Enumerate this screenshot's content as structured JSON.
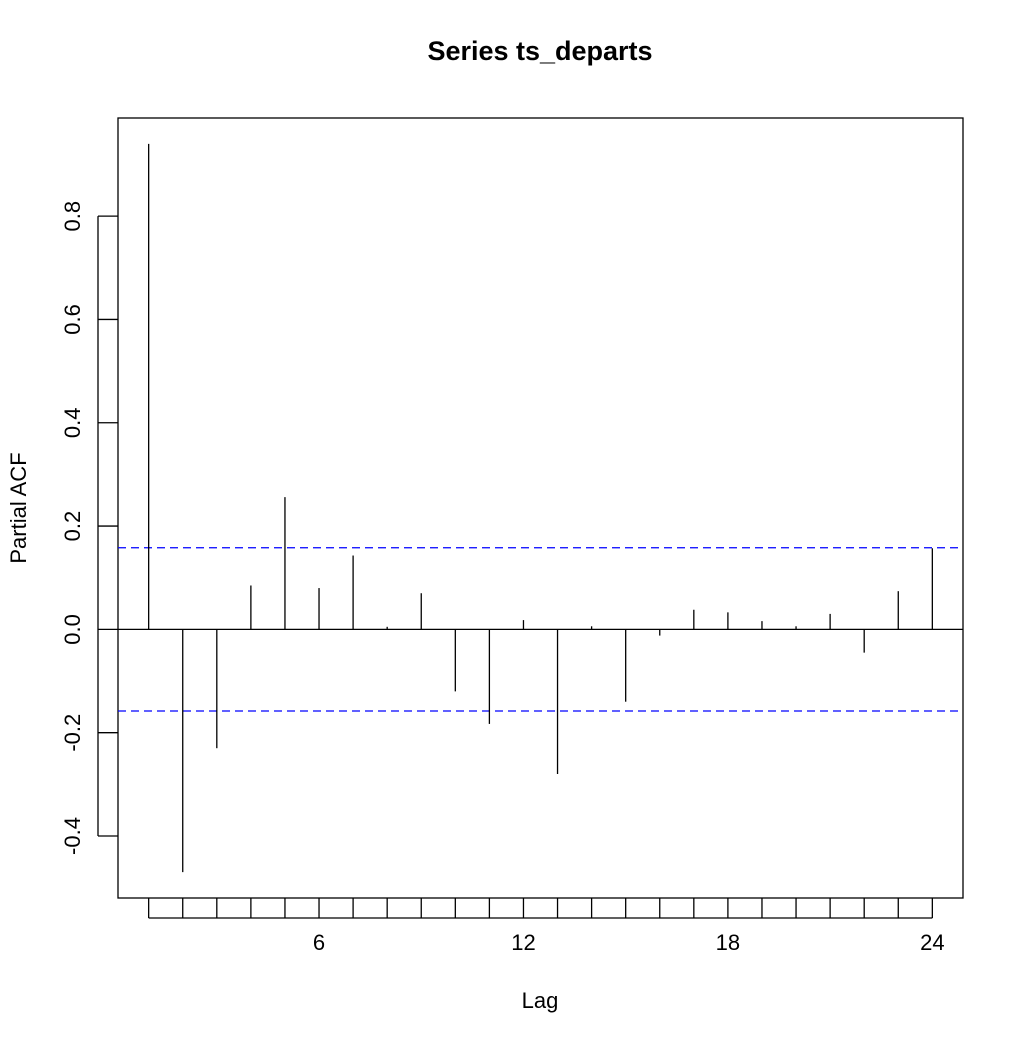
{
  "chart_data": {
    "type": "bar",
    "title": "Series  ts_departs",
    "xlabel": "Lag",
    "ylabel": "Partial ACF",
    "xlim": [
      0.1,
      24.9
    ],
    "ylim": [
      -0.52,
      0.99
    ],
    "x_ticks": [
      1,
      2,
      3,
      4,
      5,
      6,
      7,
      8,
      9,
      10,
      11,
      12,
      13,
      14,
      15,
      16,
      17,
      18,
      19,
      20,
      21,
      22,
      23,
      24
    ],
    "x_tick_labels": [
      "6",
      "12",
      "18",
      "24"
    ],
    "x_tick_label_values": [
      6,
      12,
      18,
      24
    ],
    "y_ticks": [
      -0.4,
      -0.2,
      0.0,
      0.2,
      0.4,
      0.6,
      0.8
    ],
    "y_tick_labels": [
      "-0.4",
      "-0.2",
      "0.0",
      "0.2",
      "0.4",
      "0.6",
      "0.8"
    ],
    "confidence_bound": 0.158,
    "confidence_color": "#0000ff",
    "series": [
      {
        "lags": [
          1,
          2,
          3,
          4,
          5,
          6,
          7,
          8,
          9,
          10,
          11,
          12,
          13,
          14,
          15,
          16,
          17,
          18,
          19,
          20,
          21,
          22,
          23,
          24
        ],
        "values": [
          0.94,
          -0.47,
          -0.23,
          0.085,
          0.256,
          0.08,
          0.143,
          0.005,
          0.07,
          -0.12,
          -0.183,
          0.018,
          -0.28,
          0.006,
          -0.14,
          -0.012,
          0.038,
          0.033,
          0.016,
          0.006,
          0.03,
          -0.045,
          0.074,
          0.157
        ]
      }
    ],
    "grid": false
  }
}
